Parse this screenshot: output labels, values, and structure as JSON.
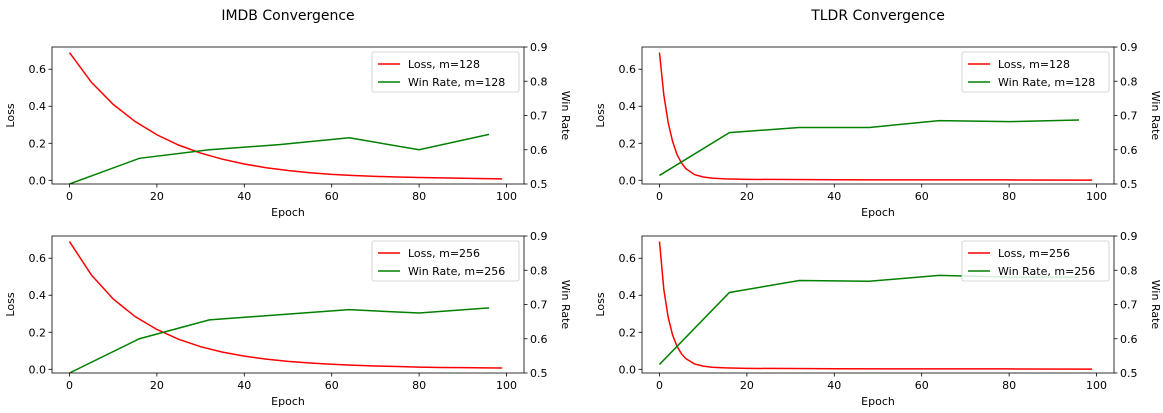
{
  "column_titles": [
    "IMDB Convergence",
    "TLDR Convergence"
  ],
  "chart_data": [
    {
      "type": "line",
      "panel": "imdb-m128",
      "xlabel": "Epoch",
      "ylabel": "Loss",
      "y2label": "Win Rate",
      "xlim": [
        -4,
        104
      ],
      "ylim": [
        -0.02,
        0.72
      ],
      "y2lim": [
        0.5,
        0.9
      ],
      "xticks": [
        0,
        20,
        40,
        60,
        80,
        100
      ],
      "yticks": [
        0.0,
        0.2,
        0.4,
        0.6
      ],
      "y2ticks": [
        0.5,
        0.6,
        0.7,
        0.8,
        0.9
      ],
      "legend": "top-right",
      "series": [
        {
          "name": "Loss, m=128",
          "color": "#ff0000",
          "axis": "left",
          "x": [
            0,
            5,
            10,
            15,
            20,
            25,
            30,
            35,
            40,
            45,
            50,
            55,
            60,
            65,
            70,
            75,
            80,
            85,
            90,
            95,
            99
          ],
          "values": [
            0.69,
            0.53,
            0.41,
            0.318,
            0.246,
            0.19,
            0.147,
            0.114,
            0.088,
            0.068,
            0.053,
            0.041,
            0.032,
            0.026,
            0.021,
            0.018,
            0.015,
            0.013,
            0.011,
            0.009,
            0.008
          ]
        },
        {
          "name": "Win Rate, m=128",
          "color": "#008000",
          "axis": "right",
          "x": [
            0,
            16,
            32,
            48,
            64,
            80,
            96
          ],
          "values": [
            0.5,
            0.575,
            0.6,
            0.615,
            0.635,
            0.6,
            0.645
          ]
        }
      ]
    },
    {
      "type": "line",
      "panel": "tldr-m128",
      "xlabel": "Epoch",
      "ylabel": "Loss",
      "y2label": "Win Rate",
      "xlim": [
        -4,
        104
      ],
      "ylim": [
        -0.02,
        0.72
      ],
      "y2lim": [
        0.5,
        0.9
      ],
      "xticks": [
        0,
        20,
        40,
        60,
        80,
        100
      ],
      "yticks": [
        0.0,
        0.2,
        0.4,
        0.6
      ],
      "y2ticks": [
        0.5,
        0.6,
        0.7,
        0.8,
        0.9
      ],
      "legend": "top-right",
      "series": [
        {
          "name": "Loss, m=128",
          "color": "#ff0000",
          "axis": "left",
          "x": [
            0,
            1,
            2,
            3,
            4,
            5,
            6,
            8,
            10,
            12,
            15,
            20,
            30,
            40,
            60,
            80,
            99
          ],
          "values": [
            0.69,
            0.46,
            0.31,
            0.21,
            0.14,
            0.095,
            0.064,
            0.031,
            0.018,
            0.012,
            0.008,
            0.005,
            0.004,
            0.003,
            0.002,
            0.002,
            0.001
          ]
        },
        {
          "name": "Win Rate, m=128",
          "color": "#008000",
          "axis": "right",
          "x": [
            0,
            16,
            32,
            48,
            64,
            80,
            96
          ],
          "values": [
            0.525,
            0.65,
            0.665,
            0.665,
            0.685,
            0.682,
            0.687
          ]
        }
      ]
    },
    {
      "type": "line",
      "panel": "imdb-m256",
      "xlabel": "Epoch",
      "ylabel": "Loss",
      "y2label": "Win Rate",
      "xlim": [
        -4,
        104
      ],
      "ylim": [
        -0.02,
        0.72
      ],
      "y2lim": [
        0.5,
        0.9
      ],
      "xticks": [
        0,
        20,
        40,
        60,
        80,
        100
      ],
      "yticks": [
        0.0,
        0.2,
        0.4,
        0.6
      ],
      "y2ticks": [
        0.5,
        0.6,
        0.7,
        0.8,
        0.9
      ],
      "legend": "top-right",
      "series": [
        {
          "name": "Loss, m=256",
          "color": "#ff0000",
          "axis": "left",
          "x": [
            0,
            5,
            10,
            15,
            20,
            25,
            30,
            35,
            40,
            45,
            50,
            55,
            60,
            65,
            70,
            75,
            80,
            85,
            90,
            95,
            99
          ],
          "values": [
            0.69,
            0.51,
            0.38,
            0.285,
            0.215,
            0.162,
            0.122,
            0.093,
            0.071,
            0.055,
            0.043,
            0.034,
            0.027,
            0.022,
            0.018,
            0.015,
            0.012,
            0.01,
            0.009,
            0.008,
            0.007
          ]
        },
        {
          "name": "Win Rate, m=256",
          "color": "#008000",
          "axis": "right",
          "x": [
            0,
            16,
            32,
            48,
            64,
            80,
            96
          ],
          "values": [
            0.5,
            0.6,
            0.655,
            0.67,
            0.685,
            0.675,
            0.69
          ]
        }
      ]
    },
    {
      "type": "line",
      "panel": "tldr-m256",
      "xlabel": "Epoch",
      "ylabel": "Loss",
      "y2label": "Win Rate",
      "xlim": [
        -4,
        104
      ],
      "ylim": [
        -0.02,
        0.72
      ],
      "y2lim": [
        0.5,
        0.9
      ],
      "xticks": [
        0,
        20,
        40,
        60,
        80,
        100
      ],
      "yticks": [
        0.0,
        0.2,
        0.4,
        0.6
      ],
      "y2ticks": [
        0.5,
        0.6,
        0.7,
        0.8,
        0.9
      ],
      "legend": "top-right",
      "series": [
        {
          "name": "Loss, m=256",
          "color": "#ff0000",
          "axis": "left",
          "x": [
            0,
            1,
            2,
            3,
            4,
            5,
            6,
            8,
            10,
            12,
            15,
            20,
            30,
            40,
            60,
            80,
            99
          ],
          "values": [
            0.69,
            0.43,
            0.28,
            0.185,
            0.125,
            0.085,
            0.058,
            0.029,
            0.017,
            0.011,
            0.008,
            0.005,
            0.004,
            0.003,
            0.002,
            0.002,
            0.001
          ]
        },
        {
          "name": "Win Rate, m=256",
          "color": "#008000",
          "axis": "right",
          "x": [
            0,
            16,
            32,
            48,
            64,
            80,
            96
          ],
          "values": [
            0.525,
            0.735,
            0.77,
            0.768,
            0.785,
            0.78,
            0.78
          ]
        }
      ]
    }
  ]
}
